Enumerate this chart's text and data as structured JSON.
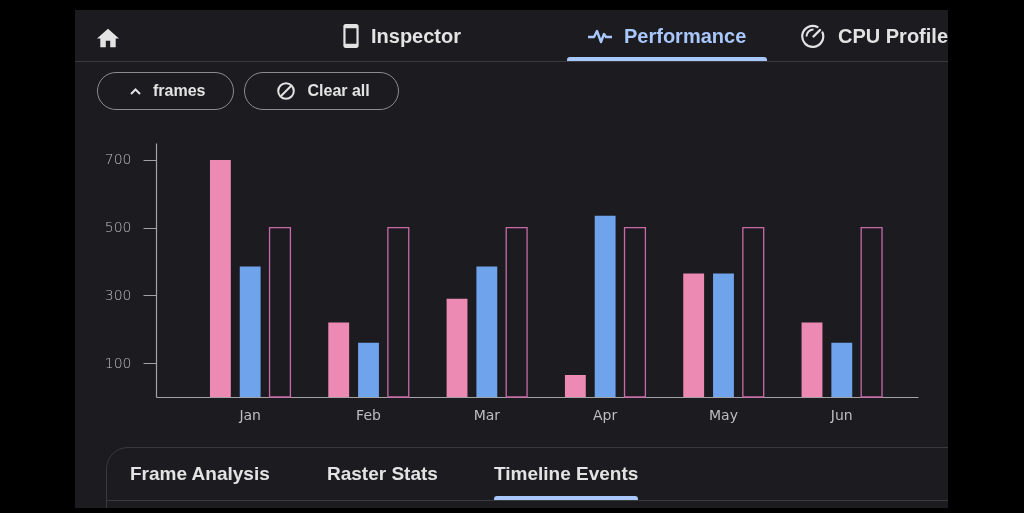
{
  "chart_data": {
    "type": "bar",
    "categories": [
      "Jan",
      "Feb",
      "Mar",
      "Apr",
      "May",
      "Jun"
    ],
    "series": [
      {
        "color": "#ec8ab4",
        "values": [
          700,
          220,
          290,
          65,
          365,
          220
        ]
      },
      {
        "color": "#6fa3ec",
        "values": [
          385,
          160,
          385,
          535,
          365,
          160
        ]
      },
      {
        "color": "#c86aa8",
        "values": [
          500,
          500,
          500,
          500,
          500,
          500
        ]
      }
    ],
    "ylim": [
      0,
      750
    ],
    "yticks": [
      100,
      300,
      500,
      700
    ],
    "annotations": [
      "Inspector",
      "Performance",
      "CPU Profile",
      "frames",
      "Clear all",
      "Frame Analysis",
      "Raster Stats",
      "Timeline Events"
    ]
  }
}
